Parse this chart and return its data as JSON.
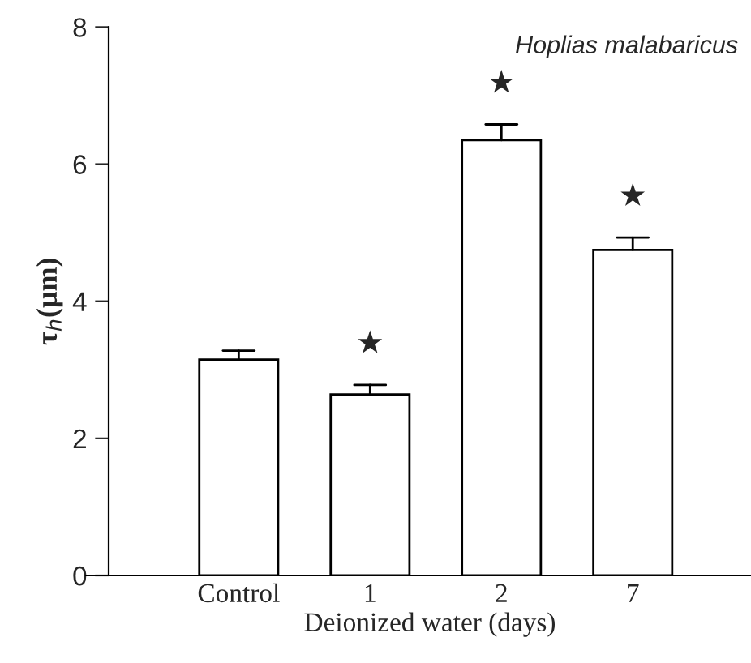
{
  "chart_data": {
    "type": "bar",
    "title": "Hoplias malabaricus",
    "xlabel": "Deionized water (days)",
    "ylabel": "τ$_{h}$(μm)",
    "categories": [
      "Control",
      "1",
      "2",
      "7"
    ],
    "values": [
      3.15,
      2.64,
      6.35,
      4.75
    ],
    "color": "#ffffff",
    "errors": [
      [
        3.15,
        3.28
      ],
      [
        2.64,
        2.78
      ],
      [
        6.35,
        6.58
      ],
      [
        4.75,
        4.93
      ]
    ],
    "ylim": [
      0,
      8
    ],
    "yticks": [
      0,
      2,
      4,
      6,
      8
    ],
    "grid": false,
    "annotations": [
      {
        "text": "★",
        "x": "1",
        "y": 2.78
      },
      {
        "text": "★",
        "x": "2",
        "y": 6.58
      },
      {
        "text": "★",
        "x": "7",
        "y": 4.93
      }
    ]
  }
}
